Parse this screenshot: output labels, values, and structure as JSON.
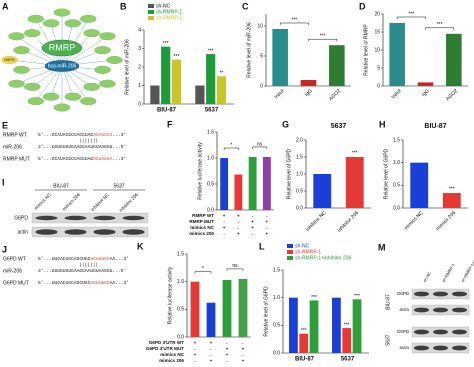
{
  "network": {
    "panel": "A",
    "center": "RMRP",
    "mirna": "hsa-miR-206",
    "target": "G6PD"
  },
  "sequence_e": {
    "panel": "E",
    "rows": [
      {
        "name": "RMRP WT",
        "prefix": "5'...GCAUACGCCACGUAG",
        "site": "ACAUCCC",
        "suffix": "...3'"
      },
      {
        "name": "miR-206",
        "prefix": "3'...GGUGUGUGAAGGAAUGUAAGGU...5'"
      },
      {
        "name": "RMRP MUT",
        "prefix": "5'...GCAUACGCCACGUAG",
        "site": "UGUAGGA",
        "suffix": "...3'"
      }
    ],
    "pairing": "|||||||"
  },
  "sequence_j": {
    "panel": "J",
    "rows": [
      {
        "name": "G6PD WT",
        "prefix": "5'...UUGACUCCAGCUGC",
        "site": "ACAUUCC",
        "suffix": "AA...3'"
      },
      {
        "name": "miR-206",
        "prefix": "3'...GGUGUGUGAAGGAAUGUAAGGU...5'"
      },
      {
        "name": "G6PD MUT",
        "prefix": "5'...UUGACUCCAGCUGC",
        "site": "UGUAAGG",
        "suffix": "AA...3'"
      }
    ],
    "pairing": "|||||||"
  },
  "blot_i": {
    "panel": "I",
    "groups": [
      "BIU-87",
      "5637"
    ],
    "lanes": [
      "mimics NC",
      "mimics 206",
      "inhibitor NC",
      "inhibitor 206"
    ],
    "rows": [
      "G6PD",
      "actin"
    ]
  },
  "blot_m": {
    "panel": "M",
    "groups": [
      "BIU-87",
      "5637"
    ],
    "lanes": [
      "sh-NC",
      "sh-RMRP-1",
      "sh-RMRP-1+inhibitor 206"
    ],
    "rows": [
      "G6PD",
      "actin"
    ]
  },
  "chart_data": [
    {
      "panel": "B",
      "type": "bar",
      "ylabel": "Relative level of miR-206",
      "categories": [
        "BIU-87",
        "5637"
      ],
      "series": [
        {
          "name": "sh-NC",
          "color": "#555555",
          "values": [
            1.0,
            1.0
          ]
        },
        {
          "name": "sh-RMRP-1",
          "color": "#1f9a3a",
          "values": [
            3.1,
            2.7
          ],
          "significance": [
            "***",
            "***"
          ]
        },
        {
          "name": "sh-RMRP-2",
          "color": "#c9c42c",
          "values": [
            2.4,
            1.5
          ],
          "significance": [
            "***",
            "**"
          ]
        }
      ],
      "ylim": [
        0,
        4
      ],
      "yticks": [
        0,
        1,
        2,
        3,
        4
      ]
    },
    {
      "panel": "C",
      "type": "bar",
      "ylabel": "Relative level of miR-206",
      "categories": [
        "Input",
        "IgG",
        "AGO2"
      ],
      "values": [
        9.5,
        1.0,
        6.8
      ],
      "colors": [
        "#2a8c8c",
        "#c62828",
        "#2e7d32"
      ],
      "ylim": [
        0,
        12
      ],
      "yticks": [
        0,
        5,
        10
      ],
      "xtick_rotation": -45,
      "comparisons": [
        {
          "between": [
            0,
            1
          ],
          "text": "***"
        },
        {
          "between": [
            1,
            2
          ],
          "text": "***"
        }
      ]
    },
    {
      "panel": "D",
      "type": "bar",
      "ylabel": "Relative level of RMRP",
      "categories": [
        "Input",
        "IgG",
        "AGO2"
      ],
      "values": [
        17.5,
        1.0,
        14.5
      ],
      "colors": [
        "#2a8c8c",
        "#c62828",
        "#2e7d32"
      ],
      "ylim": [
        0,
        20
      ],
      "yticks": [
        0,
        5,
        10,
        15,
        20
      ],
      "xtick_rotation": -45,
      "comparisons": [
        {
          "between": [
            0,
            1
          ],
          "text": "***"
        },
        {
          "between": [
            1,
            2
          ],
          "text": "***"
        }
      ]
    },
    {
      "panel": "F",
      "type": "bar",
      "ylabel": "Relative luciferase activity",
      "values": [
        1.0,
        0.68,
        1.02,
        1.02
      ],
      "colors": [
        "#1a3fd6",
        "#e53935",
        "#2e9e3a",
        "#8e3fa8"
      ],
      "ylim": [
        0,
        1.5
      ],
      "yticks": [
        {
          "value": 0,
          "label": "0.0"
        },
        {
          "value": 0.5,
          "label": "0.5"
        },
        {
          "value": 1,
          "label": "1.0"
        },
        {
          "value": 1.5,
          "label": "1.5"
        }
      ],
      "comparisons": [
        {
          "between": [
            0,
            1
          ],
          "text": "*"
        },
        {
          "between": [
            2,
            3
          ],
          "text": "ns"
        }
      ],
      "conditions": [
        {
          "name": "RMRP WT",
          "marks": [
            "+",
            "+",
            "-",
            "-"
          ]
        },
        {
          "name": "RMRP MUT",
          "marks": [
            "-",
            "-",
            "+",
            "+"
          ]
        },
        {
          "name": "mimics NC",
          "marks": [
            "+",
            "-",
            "+",
            "-"
          ]
        },
        {
          "name": "mimics 206",
          "marks": [
            "-",
            "+",
            "-",
            "+"
          ]
        }
      ]
    },
    {
      "panel": "G",
      "type": "bar",
      "title": "5637",
      "ylabel": "Relative level of G6PD",
      "categories": [
        "inhibitor NC",
        "inhibitor 206"
      ],
      "values": [
        1.0,
        1.5
      ],
      "colors": [
        "#1a3fd6",
        "#e53935"
      ],
      "significance": [
        null,
        "***"
      ],
      "ylim": [
        0,
        2
      ],
      "yticks": [
        {
          "value": 0,
          "label": "0.0"
        },
        {
          "value": 0.5,
          "label": "0.5"
        },
        {
          "value": 1,
          "label": "1.0"
        },
        {
          "value": 1.5,
          "label": "1.5"
        },
        {
          "value": 2,
          "label": "2.0"
        }
      ],
      "xtick_rotation": -45
    },
    {
      "panel": "H",
      "type": "bar",
      "title": "BIU-87",
      "ylabel": "Relative level of G6PD",
      "categories": [
        "mimics NC",
        "mimics 206"
      ],
      "values": [
        1.0,
        0.33
      ],
      "colors": [
        "#1a3fd6",
        "#e53935"
      ],
      "significance": [
        null,
        "***"
      ],
      "ylim": [
        0,
        1.5
      ],
      "yticks": [
        {
          "value": 0,
          "label": "0.0"
        },
        {
          "value": 0.5,
          "label": "0.5"
        },
        {
          "value": 1,
          "label": "1.0"
        },
        {
          "value": 1.5,
          "label": "1.5"
        }
      ],
      "xtick_rotation": -45
    },
    {
      "panel": "K",
      "type": "bar",
      "ylabel": "Relative luciferase activity",
      "values": [
        1.0,
        0.62,
        1.03,
        1.05
      ],
      "colors": [
        "#e53935",
        "#1a3fd6",
        "#2e9e3a",
        "#43a047"
      ],
      "ylim": [
        0,
        1.5
      ],
      "yticks": [
        {
          "value": 0,
          "label": "0.0"
        },
        {
          "value": 0.5,
          "label": "0.5"
        },
        {
          "value": 1,
          "label": "1.0"
        },
        {
          "value": 1.5,
          "label": "1.5"
        }
      ],
      "comparisons": [
        {
          "between": [
            0,
            1
          ],
          "text": "*"
        },
        {
          "between": [
            2,
            3
          ],
          "text": "ns"
        }
      ],
      "conditions": [
        {
          "name": "G6PD 3'UTR WT",
          "marks": [
            "+",
            "+",
            "-",
            "-"
          ]
        },
        {
          "name": "G6PD 3'UTR MUT",
          "marks": [
            "-",
            "-",
            "+",
            "+"
          ]
        },
        {
          "name": "mimics NC",
          "marks": [
            "+",
            "-",
            "+",
            "-"
          ]
        },
        {
          "name": "mimics 206",
          "marks": [
            "-",
            "+",
            "-",
            "+"
          ]
        }
      ]
    },
    {
      "panel": "L",
      "type": "bar",
      "ylabel": "Relative level of G6PD",
      "categories": [
        "BIU-87",
        "5637"
      ],
      "series": [
        {
          "name": "sh-NC",
          "color": "#1a3fd6",
          "values": [
            1.0,
            1.0
          ]
        },
        {
          "name": "sh-RMRP-1",
          "color": "#e53935",
          "values": [
            0.35,
            0.45
          ],
          "significance": [
            "***",
            "***"
          ]
        },
        {
          "name": "sh-RMRP-1+inhibitor 206",
          "color": "#2e9e3a",
          "values": [
            0.95,
            0.97
          ],
          "significance": [
            "***",
            "***"
          ]
        }
      ],
      "ylim": [
        0,
        1.5
      ],
      "yticks": [
        {
          "value": 0,
          "label": "0.0"
        },
        {
          "value": 0.5,
          "label": "0.5"
        },
        {
          "value": 1,
          "label": "1.0"
        },
        {
          "value": 1.5,
          "label": "1.5"
        }
      ]
    }
  ]
}
